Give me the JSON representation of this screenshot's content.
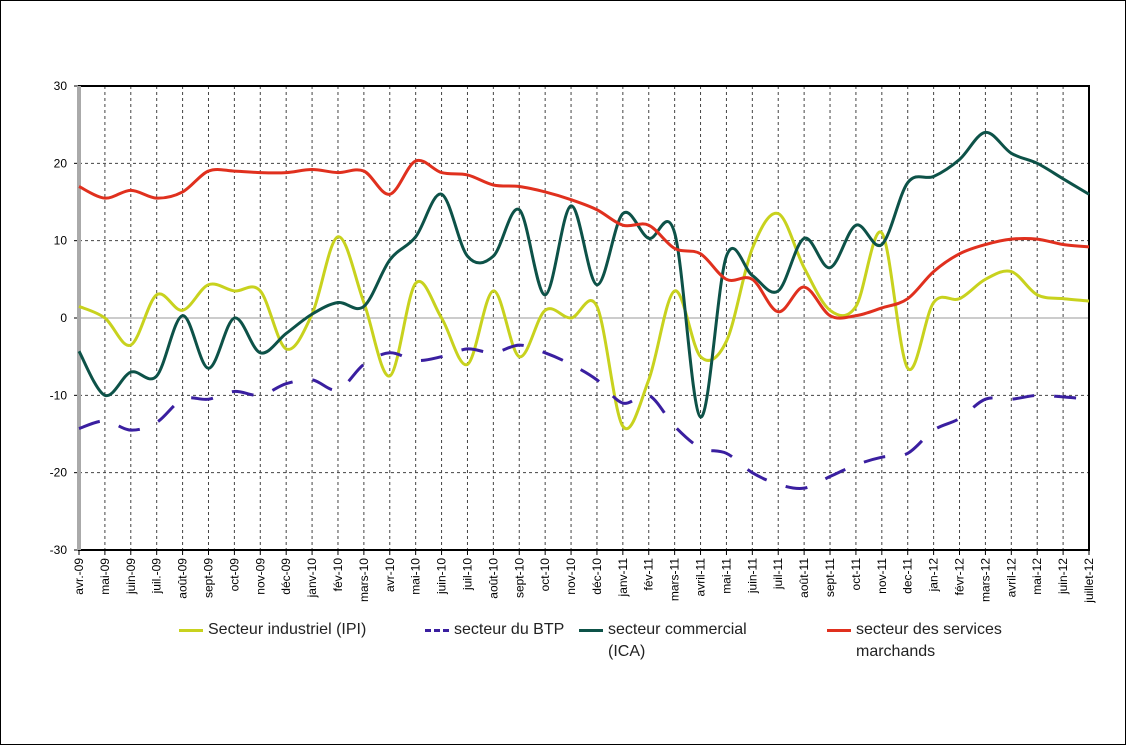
{
  "chart_data": {
    "type": "line",
    "categories": [
      "avr.-09",
      "mai-09",
      "juin-09",
      "juil.-09",
      "août-09",
      "sept-09",
      "oct-09",
      "nov-09",
      "déc-09",
      "janv-10",
      "fév-10",
      "mars-10",
      "avr-10",
      "mai-10",
      "juin-10",
      "juil-10",
      "août-10",
      "sept-10",
      "oct-10",
      "nov-10",
      "déc-10",
      "janv-11",
      "fév-11",
      "mars-11",
      "avril-11",
      "mai-11",
      "juin-11",
      "juil-11",
      "août-11",
      "sept-11",
      "oct-11",
      "nov-11",
      "dec-11",
      "jan-12",
      "févr-12",
      "mars-12",
      "avril-12",
      "mai-12",
      "juin-12",
      "juillet-12"
    ],
    "series": [
      {
        "name": "Secteur industriel (IPI)",
        "color": "#c8d21e",
        "dashed": false,
        "values": [
          1.5,
          0,
          -3.5,
          3,
          1,
          4.3,
          3.5,
          3.5,
          -4,
          0.5,
          10.5,
          2,
          -7.5,
          4.5,
          0,
          -6,
          3.5,
          -5,
          1,
          0,
          1.5,
          -14,
          -8,
          3.5,
          -5,
          -3,
          9,
          13.5,
          6.5,
          1,
          1.5,
          11,
          -6.5,
          2,
          2.5,
          5,
          6,
          3,
          2.5,
          2.2
        ]
      },
      {
        "name": "secteur du BTP",
        "color": "#3a1fa0",
        "dashed": true,
        "values": [
          -14.3,
          -13.3,
          -14.5,
          -13.5,
          -10.5,
          -10.5,
          -9.5,
          -10,
          -8.5,
          -8,
          -9.3,
          -6,
          -4.5,
          -5.5,
          -5,
          -4,
          -4.5,
          -3.5,
          -4.5,
          -6,
          -8,
          -11,
          -10,
          -14,
          -16.8,
          -17.5,
          -20,
          -21.5,
          -22,
          -20.5,
          -19,
          -18,
          -17.5,
          -14.5,
          -13,
          -10.5,
          -10.5,
          -10,
          -10.2,
          -10.5
        ]
      },
      {
        "name": "secteur commercial (ICA)",
        "color": "#0d5248",
        "dashed": false,
        "values": [
          -4.3,
          -10,
          -7,
          -7.5,
          0.3,
          -6.5,
          0,
          -4.5,
          -2,
          0.5,
          2,
          1.5,
          7.5,
          10.5,
          16,
          8,
          8,
          14,
          3,
          14.5,
          4.3,
          13.5,
          10.3,
          11,
          -12.8,
          8,
          5.5,
          3.5,
          10.3,
          6.5,
          12,
          9.5,
          17.5,
          18.3,
          20.5,
          24,
          21.3,
          20,
          18,
          16
        ]
      },
      {
        "name": "secteur des services marchands",
        "color": "#e0301e",
        "dashed": false,
        "values": [
          17,
          15.5,
          16.5,
          15.5,
          16.3,
          19,
          19,
          18.8,
          18.8,
          19.2,
          18.8,
          19,
          16,
          20.3,
          18.8,
          18.5,
          17.2,
          17,
          16.3,
          15.3,
          14,
          12,
          12,
          9,
          8.3,
          5,
          5,
          0.8,
          4,
          0.3,
          0.3,
          1.3,
          2.5,
          6,
          8.3,
          9.5,
          10.2,
          10.2,
          9.5,
          9.2
        ]
      }
    ],
    "ylim": [
      -30,
      30
    ],
    "yticks": [
      -30,
      -20,
      -10,
      0,
      10,
      20,
      30
    ],
    "grid": true
  }
}
